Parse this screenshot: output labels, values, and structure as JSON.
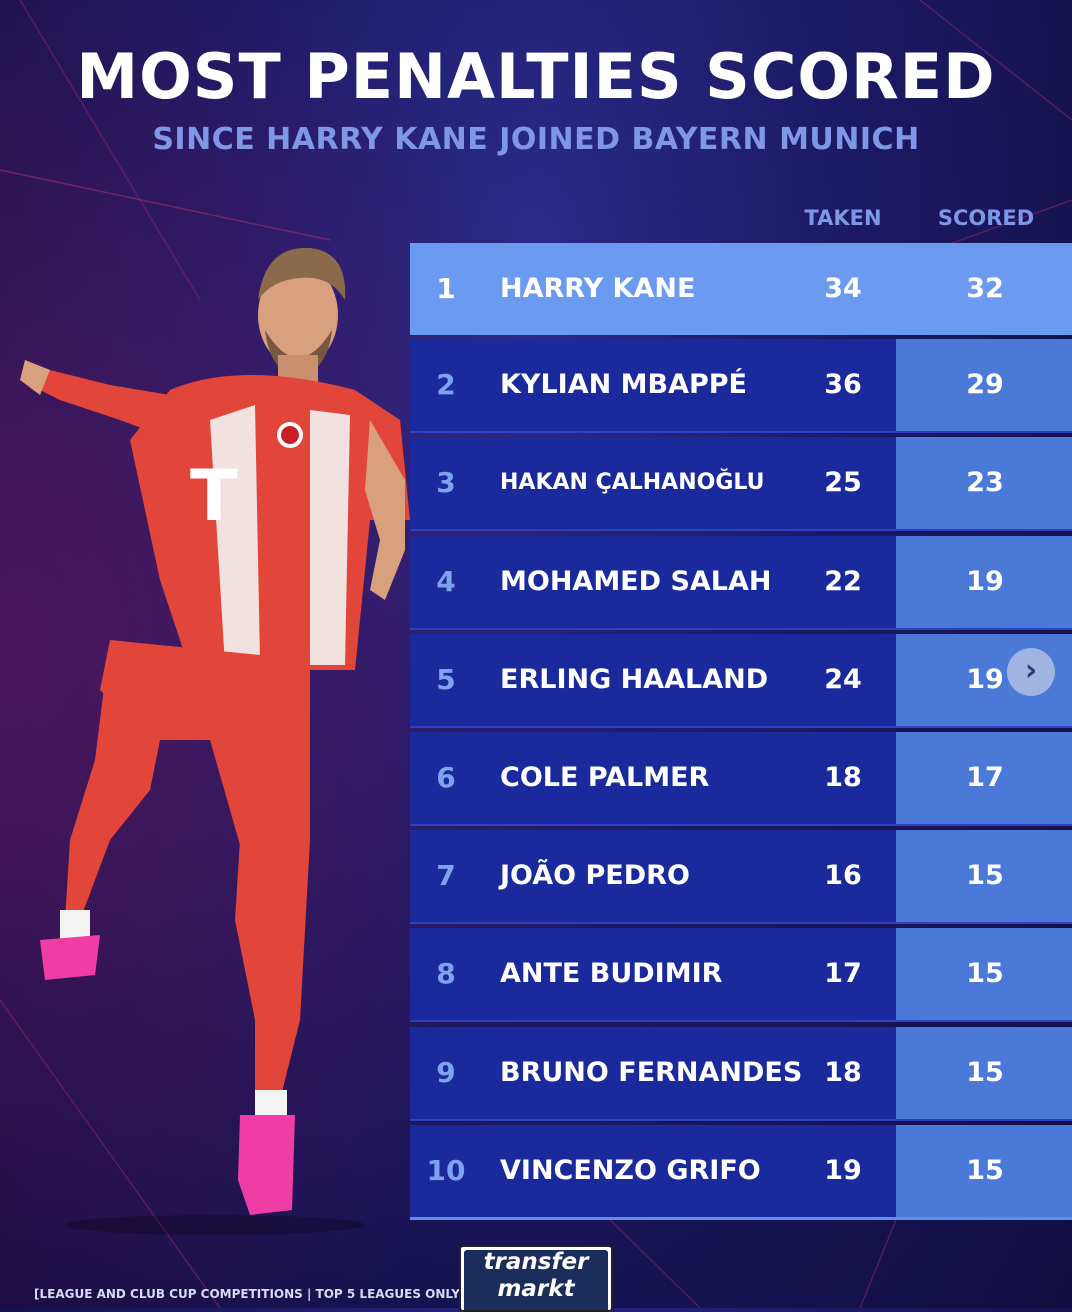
{
  "header": {
    "title": "MOST PENALTIES SCORED",
    "subtitle": "SINCE HARRY KANE JOINED BAYERN MUNICH"
  },
  "columns": {
    "taken": "TAKEN",
    "scored": "SCORED"
  },
  "rows": [
    {
      "rank": "1",
      "name": "HARRY KANE",
      "taken": "34",
      "scored": "32"
    },
    {
      "rank": "2",
      "name": "KYLIAN MBAPPÉ",
      "taken": "36",
      "scored": "29"
    },
    {
      "rank": "3",
      "name": "HAKAN ÇALHANOĞLU",
      "taken": "25",
      "scored": "23"
    },
    {
      "rank": "4",
      "name": "MOHAMED SALAH",
      "taken": "22",
      "scored": "19"
    },
    {
      "rank": "5",
      "name": "ERLING HAALAND",
      "taken": "24",
      "scored": "19"
    },
    {
      "rank": "6",
      "name": "COLE PALMER",
      "taken": "18",
      "scored": "17"
    },
    {
      "rank": "7",
      "name": "JOÃO PEDRO",
      "taken": "16",
      "scored": "15"
    },
    {
      "rank": "8",
      "name": "ANTE BUDIMIR",
      "taken": "17",
      "scored": "15"
    },
    {
      "rank": "9",
      "name": "BRUNO FERNANDES",
      "taken": "18",
      "scored": "15"
    },
    {
      "rank": "10",
      "name": "VINCENZO GRIFO",
      "taken": "19",
      "scored": "15"
    }
  ],
  "footnote": "[LEAGUE AND CLUB CUP COMPETITIONS | TOP 5 LEAGUES ONLY]",
  "logo": {
    "line1": "transfer",
    "line2": "markt"
  },
  "icons": {
    "next": "chevron-right-icon",
    "player": "player-photo"
  },
  "colors": {
    "background": "#1d1a66",
    "row": "#1a2a9c",
    "highlight_row": "#6a9bf0",
    "scored_column": "#4a79d8",
    "accent_text": "#7f97e6",
    "player_kit": "#e2463a"
  }
}
